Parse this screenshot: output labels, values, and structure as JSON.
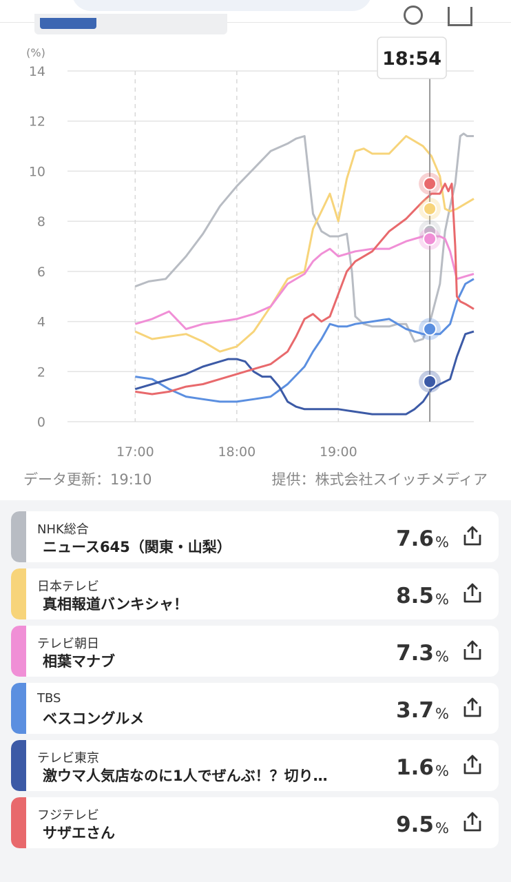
{
  "chart_data": {
    "type": "line",
    "ylabel": "(%)",
    "ylim": [
      0,
      14
    ],
    "yticks": [
      0,
      2,
      4,
      6,
      8,
      10,
      12,
      14
    ],
    "xticks": [
      "17:00",
      "18:00",
      "19:00"
    ],
    "grid": true,
    "cursor_time": "18:54",
    "series": [
      {
        "name": "NHK総合",
        "color": "#b8bcc3",
        "x_min": [
          0,
          8,
          18,
          30,
          40,
          50,
          60,
          70,
          80,
          90,
          95,
          100,
          105,
          110,
          115,
          120,
          125,
          128,
          130,
          135,
          140,
          150,
          155,
          160,
          165,
          170,
          175,
          180,
          183,
          186,
          189,
          192,
          194,
          196,
          200
        ],
        "y": [
          5.4,
          5.6,
          5.7,
          6.6,
          7.5,
          8.6,
          9.4,
          10.1,
          10.8,
          11.1,
          11.3,
          11.4,
          8.3,
          7.6,
          7.4,
          7.4,
          7.5,
          6,
          4.2,
          3.9,
          3.8,
          3.8,
          3.9,
          3.9,
          3.2,
          3.3,
          4.2,
          5.5,
          7.6,
          8.6,
          9.5,
          11.4,
          11.5,
          11.4,
          11.4
        ]
      },
      {
        "name": "日本テレビ",
        "color": "#f7d47a",
        "x_min": [
          0,
          10,
          20,
          30,
          40,
          50,
          60,
          70,
          80,
          90,
          100,
          105,
          110,
          115,
          120,
          125,
          130,
          135,
          140,
          150,
          160,
          170,
          175,
          180,
          183,
          186,
          190,
          195,
          200
        ],
        "y": [
          3.6,
          3.3,
          3.4,
          3.5,
          3.2,
          2.8,
          3.0,
          3.6,
          4.6,
          5.7,
          6.0,
          7.7,
          8.4,
          9.1,
          8.0,
          9.7,
          10.8,
          10.9,
          10.7,
          10.7,
          11.4,
          11.0,
          10.6,
          9.8,
          8.5,
          8.4,
          8.5,
          8.7,
          8.9
        ]
      },
      {
        "name": "テレビ朝日",
        "color": "#f08fd6",
        "x_min": [
          0,
          10,
          20,
          30,
          40,
          50,
          60,
          70,
          80,
          90,
          100,
          105,
          110,
          115,
          120,
          130,
          140,
          150,
          160,
          170,
          180,
          183,
          186,
          190,
          195,
          200
        ],
        "y": [
          3.9,
          4.1,
          4.4,
          3.7,
          3.9,
          4.0,
          4.1,
          4.3,
          4.6,
          5.5,
          5.9,
          6.4,
          6.7,
          6.9,
          6.6,
          6.8,
          6.9,
          6.9,
          7.2,
          7.4,
          7.4,
          7.3,
          6.8,
          5.7,
          5.8,
          5.9
        ]
      },
      {
        "name": "TBS",
        "color": "#5b8fe0",
        "x_min": [
          0,
          10,
          20,
          30,
          40,
          50,
          60,
          70,
          80,
          90,
          100,
          105,
          110,
          115,
          120,
          125,
          130,
          140,
          150,
          160,
          170,
          180,
          183,
          186,
          190,
          195,
          200
        ],
        "y": [
          1.8,
          1.7,
          1.3,
          1.0,
          0.9,
          0.8,
          0.8,
          0.9,
          1.0,
          1.5,
          2.2,
          2.8,
          3.3,
          3.9,
          3.8,
          3.8,
          3.9,
          4.0,
          4.1,
          3.7,
          3.5,
          3.5,
          3.7,
          3.9,
          4.8,
          5.5,
          5.7
        ]
      },
      {
        "name": "テレビ東京",
        "color": "#3c5aa6",
        "x_min": [
          0,
          10,
          20,
          30,
          40,
          50,
          55,
          60,
          65,
          70,
          75,
          80,
          85,
          90,
          95,
          100,
          110,
          120,
          130,
          140,
          150,
          160,
          165,
          170,
          175,
          180,
          183,
          186,
          190,
          195,
          200
        ],
        "y": [
          1.3,
          1.5,
          1.7,
          1.9,
          2.2,
          2.4,
          2.5,
          2.5,
          2.4,
          2.0,
          1.8,
          1.8,
          1.4,
          0.8,
          0.6,
          0.5,
          0.5,
          0.5,
          0.4,
          0.3,
          0.3,
          0.3,
          0.5,
          0.8,
          1.3,
          1.5,
          1.6,
          1.7,
          2.6,
          3.5,
          3.6
        ]
      },
      {
        "name": "フジテレビ",
        "color": "#e8696c",
        "x_min": [
          0,
          10,
          20,
          30,
          40,
          50,
          60,
          70,
          80,
          90,
          95,
          100,
          105,
          110,
          115,
          120,
          125,
          130,
          140,
          150,
          160,
          170,
          175,
          180,
          183,
          185,
          187,
          189,
          190,
          192,
          195,
          200
        ],
        "y": [
          1.2,
          1.1,
          1.2,
          1.4,
          1.5,
          1.7,
          1.9,
          2.1,
          2.3,
          2.8,
          3.4,
          4.1,
          4.3,
          4.0,
          4.2,
          5.1,
          6.0,
          6.4,
          6.8,
          7.6,
          8.1,
          8.8,
          9.1,
          9.1,
          9.5,
          9.2,
          9.5,
          7.0,
          5.0,
          4.8,
          4.7,
          4.5
        ]
      }
    ],
    "markers": [
      {
        "color": "#b8bcc3",
        "value": 7.6
      },
      {
        "color": "#f7d47a",
        "value": 8.5
      },
      {
        "color": "#f08fd6",
        "value": 7.3
      },
      {
        "color": "#5b8fe0",
        "value": 3.7
      },
      {
        "color": "#3c5aa6",
        "value": 1.6
      },
      {
        "color": "#e8696c",
        "value": 9.5
      }
    ]
  },
  "footer": {
    "updated": "データ更新：19:10",
    "provider": "提供：株式会社スイッチメディア"
  },
  "channels": [
    {
      "channel": "NHK総合",
      "program": "ニュース645（関東・山梨）",
      "value": "7.6",
      "unit": "%",
      "color": "#b8bcc3"
    },
    {
      "channel": "日本テレビ",
      "program": "真相報道バンキシャ！",
      "value": "8.5",
      "unit": "%",
      "color": "#f7d47a"
    },
    {
      "channel": "テレビ朝日",
      "program": "相葉マナブ",
      "value": "7.3",
      "unit": "%",
      "color": "#f08fd6"
    },
    {
      "channel": "TBS",
      "program": "ベスコングルメ",
      "value": "3.7",
      "unit": "%",
      "color": "#5b8fe0"
    },
    {
      "channel": "テレビ東京",
      "program": "激ウマ人気店なのに1人でぜんぶ！？切り…",
      "value": "1.6",
      "unit": "%",
      "color": "#3c5aa6"
    },
    {
      "channel": "フジテレビ",
      "program": "サザエさん",
      "value": "9.5",
      "unit": "%",
      "color": "#e8696c"
    }
  ],
  "icons": {
    "share": "share-icon"
  }
}
